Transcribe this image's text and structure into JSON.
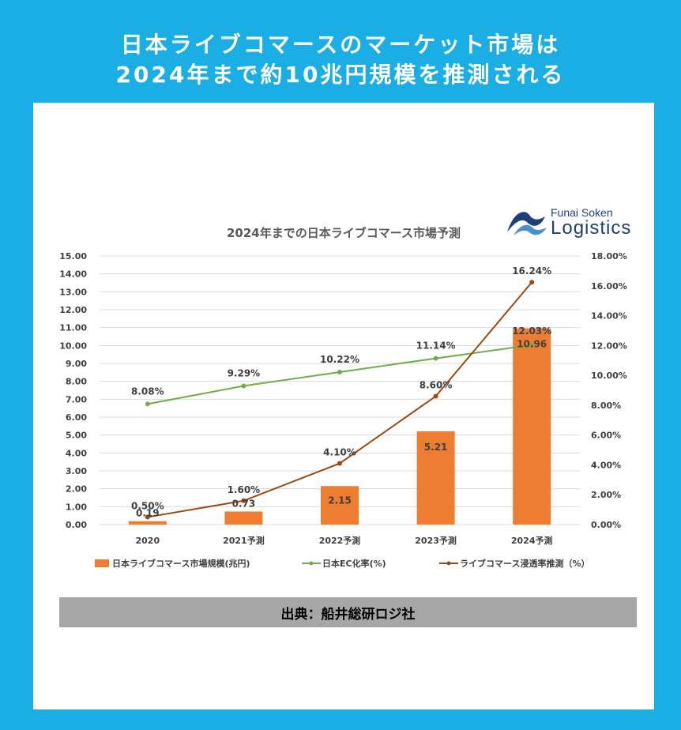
{
  "headline": {
    "line1": "日本ライブコマースのマーケット市場は",
    "line2": "2024年まで約10兆円規模を推測される"
  },
  "logo": {
    "small": "Funai Soken",
    "big": "Logistics"
  },
  "source": "出典：船井総研ロジ社",
  "colors": {
    "background": "#1aaee5",
    "bar": "#ed7d31",
    "ec": "#70ad47",
    "live": "#9e480e"
  },
  "chart_data": {
    "type": "bar",
    "title": "2024年までの日本ライブコマース市場予測",
    "categories": [
      "2020",
      "2021予測",
      "2022予測",
      "2023予測",
      "2024予測"
    ],
    "y_left": {
      "min": 0,
      "max": 15,
      "step": 1,
      "ticks": [
        "0.00",
        "1.00",
        "2.00",
        "3.00",
        "4.00",
        "5.00",
        "6.00",
        "7.00",
        "8.00",
        "9.00",
        "10.00",
        "11.00",
        "12.00",
        "13.00",
        "14.00",
        "15.00"
      ]
    },
    "y_right": {
      "min": 0,
      "max": 18,
      "step": 2,
      "ticks": [
        "0.00%",
        "2.00%",
        "4.00%",
        "6.00%",
        "8.00%",
        "10.00%",
        "12.00%",
        "14.00%",
        "16.00%",
        "18.00%"
      ]
    },
    "grid": true,
    "legend_position": "bottom",
    "series": [
      {
        "name": "日本ライブコマース市場規模(兆円)",
        "type": "bar",
        "axis": "left",
        "values": [
          0.19,
          0.73,
          2.15,
          5.21,
          10.96
        ],
        "labels": [
          "0.19",
          "0.73",
          "2.15",
          "5.21",
          "10.96"
        ]
      },
      {
        "name": "日本EC化率(%)",
        "type": "line",
        "axis": "right",
        "values": [
          8.08,
          9.29,
          10.22,
          11.14,
          12.03
        ],
        "labels": [
          "8.08%",
          "9.29%",
          "10.22%",
          "11.14%",
          "12.03%"
        ]
      },
      {
        "name": "ライブコマース浸透率推測（%）",
        "type": "line",
        "axis": "right",
        "values": [
          0.5,
          1.6,
          4.1,
          8.6,
          16.24
        ],
        "labels": [
          "0.50%",
          "1.60%",
          "4.10%",
          "8.60%",
          "16.24%"
        ]
      }
    ]
  }
}
